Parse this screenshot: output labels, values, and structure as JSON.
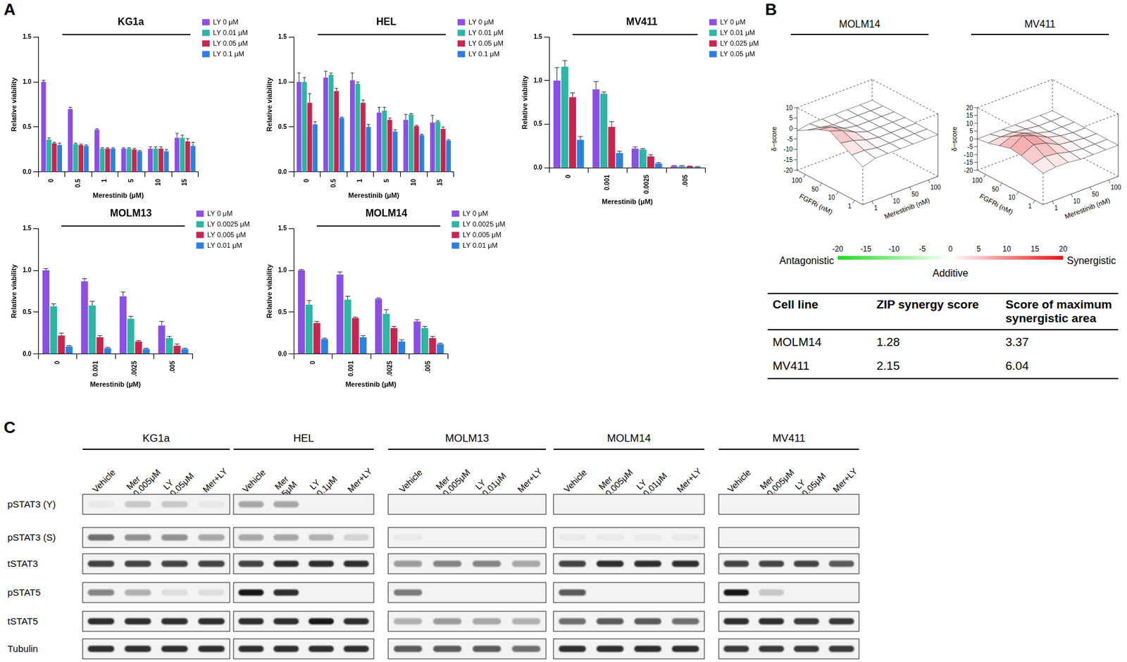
{
  "panel_labels": [
    "A",
    "B",
    "C"
  ],
  "chart_data": [
    {
      "type": "bar",
      "title": "KG1a",
      "x_label": "Merestinib (μM)",
      "y_label": "Relative viability",
      "categories": [
        "0",
        "0.5",
        "1",
        "5",
        "10",
        "15"
      ],
      "series": [
        {
          "name": "LY 0 μM",
          "color": "#8c4fe3",
          "values": [
            1.0,
            0.7,
            0.47,
            0.26,
            0.26,
            0.38
          ],
          "errors": [
            0.02,
            0.02,
            0.01,
            0.01,
            0.02,
            0.05
          ]
        },
        {
          "name": "LY 0.01 μM",
          "color": "#2bb6a5",
          "values": [
            0.36,
            0.31,
            0.26,
            0.26,
            0.26,
            0.38
          ],
          "errors": [
            0.02,
            0.01,
            0.01,
            0.01,
            0.02,
            0.03
          ]
        },
        {
          "name": "LY 0.05 μM",
          "color": "#c8254e",
          "values": [
            0.32,
            0.3,
            0.26,
            0.25,
            0.26,
            0.34
          ],
          "errors": [
            0.01,
            0.01,
            0.01,
            0.01,
            0.02,
            0.03
          ]
        },
        {
          "name": "LY 0.1 μM",
          "color": "#2d7fe0",
          "values": [
            0.3,
            0.29,
            0.26,
            0.23,
            0.23,
            0.29
          ],
          "errors": [
            0.02,
            0.01,
            0.01,
            0.01,
            0.02,
            0.04
          ]
        }
      ],
      "ylim": [
        0,
        1.5
      ],
      "yticks": [
        {
          "value": 0,
          "label": "0.0"
        },
        0.5,
        {
          "value": 1,
          "label": "1.0"
        },
        1.5
      ],
      "grid": false,
      "legend": "right"
    },
    {
      "type": "bar",
      "title": "HEL",
      "x_label": "Merestinib (μM)",
      "y_label": "Relative viability",
      "categories": [
        "0",
        "0.5",
        "1",
        "5",
        "10",
        "15"
      ],
      "series": [
        {
          "name": "LY 0 μM",
          "color": "#8c4fe3",
          "values": [
            1.0,
            1.05,
            1.02,
            0.66,
            0.58,
            0.55
          ],
          "errors": [
            0.1,
            0.07,
            0.08,
            0.06,
            0.06,
            0.08
          ]
        },
        {
          "name": "LY 0.01 μM",
          "color": "#2bb6a5",
          "values": [
            1.0,
            1.08,
            0.98,
            0.68,
            0.64,
            0.56
          ],
          "errors": [
            0.05,
            0.02,
            0.02,
            0.04,
            0.01,
            0.01
          ]
        },
        {
          "name": "LY 0.05 μM",
          "color": "#c8254e",
          "values": [
            0.77,
            0.9,
            0.77,
            0.58,
            0.51,
            0.48
          ],
          "errors": [
            0.1,
            0.03,
            0.03,
            0.02,
            0.01,
            0.02
          ]
        },
        {
          "name": "LY 0.1 μM",
          "color": "#2d7fe0",
          "values": [
            0.53,
            0.6,
            0.5,
            0.45,
            0.41,
            0.35
          ],
          "errors": [
            0.03,
            0.01,
            0.03,
            0.02,
            0.01,
            0.01
          ]
        }
      ],
      "ylim": [
        0,
        1.5
      ],
      "yticks": [
        {
          "value": 0,
          "label": "0.0"
        },
        0.5,
        {
          "value": 1,
          "label": "1.0"
        },
        1.5
      ],
      "grid": false,
      "legend": "right"
    },
    {
      "type": "bar",
      "title": "MV411",
      "x_label": "Merestinib (μM)",
      "y_label": "Relative viability",
      "categories": [
        "0",
        "0.001",
        "0.0025",
        ".005"
      ],
      "series": [
        {
          "name": "LY 0 μM",
          "color": "#8c4fe3",
          "values": [
            1.0,
            0.9,
            0.22,
            0.02
          ],
          "errors": [
            0.15,
            0.09,
            0.02,
            0.005
          ]
        },
        {
          "name": "LY 0.01 μM",
          "color": "#2bb6a5",
          "values": [
            1.16,
            0.85,
            0.21,
            0.02
          ],
          "errors": [
            0.07,
            0.02,
            0.01,
            0.005
          ]
        },
        {
          "name": "LY 0.025 μM",
          "color": "#c8254e",
          "values": [
            0.81,
            0.47,
            0.13,
            0.015
          ],
          "errors": [
            0.05,
            0.06,
            0.02,
            0.005
          ]
        },
        {
          "name": "LY 0.05 μM",
          "color": "#2d7fe0",
          "values": [
            0.32,
            0.17,
            0.05,
            0.01
          ],
          "errors": [
            0.04,
            0.02,
            0.01,
            0.005
          ]
        }
      ],
      "ylim": [
        0,
        1.5
      ],
      "yticks": [
        {
          "value": 0,
          "label": "0.0"
        },
        0.5,
        {
          "value": 1,
          "label": "1.0"
        },
        1.5
      ],
      "grid": false,
      "legend": "right"
    },
    {
      "type": "bar",
      "title": "MOLM13",
      "x_label": "Merestinib (μM)",
      "y_label": "Relative viability",
      "categories": [
        "0",
        "0.001",
        ".0025",
        ".005"
      ],
      "series": [
        {
          "name": "LY 0 μM",
          "color": "#8c4fe3",
          "values": [
            1.0,
            0.87,
            0.69,
            0.34
          ],
          "errors": [
            0.02,
            0.03,
            0.05,
            0.05
          ]
        },
        {
          "name": "LY 0.0025 μM",
          "color": "#2bb6a5",
          "values": [
            0.57,
            0.58,
            0.42,
            0.19
          ],
          "errors": [
            0.03,
            0.05,
            0.03,
            0.02
          ]
        },
        {
          "name": "LY 0.005 μM",
          "color": "#c8254e",
          "values": [
            0.22,
            0.2,
            0.15,
            0.1
          ],
          "errors": [
            0.03,
            0.02,
            0.01,
            0.02
          ]
        },
        {
          "name": "LY 0.01 μM",
          "color": "#2d7fe0",
          "values": [
            0.09,
            0.07,
            0.06,
            0.06
          ],
          "errors": [
            0.01,
            0.01,
            0.01,
            0.01
          ]
        }
      ],
      "ylim": [
        0,
        1.5
      ],
      "yticks": [
        {
          "value": 0,
          "label": "0.0"
        },
        0.5,
        {
          "value": 1,
          "label": "1.0"
        },
        1.5
      ],
      "grid": false,
      "legend": "right"
    },
    {
      "type": "bar",
      "title": "MOLM14",
      "x_label": "Merestinib (μM)",
      "y_label": "Relative viability",
      "categories": [
        "0",
        "0.001",
        ".0025",
        ".005"
      ],
      "series": [
        {
          "name": "LY 0 μM",
          "color": "#8c4fe3",
          "values": [
            1.0,
            0.95,
            0.66,
            0.39
          ],
          "errors": [
            0.01,
            0.03,
            0.01,
            0.02
          ]
        },
        {
          "name": "LY 0.0025 μM",
          "color": "#2bb6a5",
          "values": [
            0.59,
            0.65,
            0.48,
            0.31
          ],
          "errors": [
            0.05,
            0.04,
            0.05,
            0.02
          ]
        },
        {
          "name": "LY 0.005 μM",
          "color": "#c8254e",
          "values": [
            0.37,
            0.43,
            0.31,
            0.19
          ],
          "errors": [
            0.02,
            0.01,
            0.02,
            0.02
          ]
        },
        {
          "name": "LY 0.01 μM",
          "color": "#2d7fe0",
          "values": [
            0.18,
            0.2,
            0.15,
            0.12
          ],
          "errors": [
            0.01,
            0.02,
            0.02,
            0.01
          ]
        }
      ],
      "ylim": [
        0,
        1.5
      ],
      "yticks": [
        {
          "value": 0,
          "label": "0.0"
        },
        0.5,
        {
          "value": 1,
          "label": "1.0"
        },
        1.5
      ],
      "grid": false,
      "legend": "right"
    }
  ],
  "synergy": {
    "surfaces": [
      {
        "title": "MOLM14",
        "x_label": "Merestinib (nM)",
        "y_label": "FGFRi (nM)",
        "z_label": "δ−score",
        "xticks": [
          1,
          10,
          50,
          100
        ],
        "yticks": [
          1,
          10,
          50,
          100
        ],
        "zlim": [
          -20,
          10
        ],
        "zticks": [
          -20,
          -15,
          -10,
          -5,
          0,
          5,
          10
        ],
        "delta": [
          [
            -2,
            0,
            0,
            0,
            0,
            0,
            0
          ],
          [
            1,
            1,
            0,
            0,
            0,
            0,
            0
          ],
          [
            4,
            3,
            1,
            0,
            0,
            0,
            0
          ],
          [
            7,
            5,
            2,
            0,
            0,
            0,
            0
          ],
          [
            5,
            4,
            1,
            0,
            0,
            0,
            0
          ],
          [
            2,
            1,
            0,
            0,
            0,
            0,
            0
          ],
          [
            -1,
            0,
            0,
            0,
            0,
            0,
            0
          ]
        ]
      },
      {
        "title": "MV411",
        "x_label": "Merestinib (nM)",
        "y_label": "FGFRi (nM)",
        "z_label": "δ−score",
        "xticks": [
          1,
          10,
          50,
          100
        ],
        "yticks": [
          1,
          10,
          50,
          100
        ],
        "zlim": [
          -20,
          20
        ],
        "zticks": [
          -20,
          -15,
          -10,
          -5,
          0,
          5,
          10,
          15,
          20
        ],
        "delta": [
          [
            0,
            1,
            1,
            0,
            0,
            0,
            0
          ],
          [
            2,
            4,
            3,
            1,
            0,
            0,
            0
          ],
          [
            4,
            8,
            6,
            2,
            1,
            0,
            0
          ],
          [
            5,
            10,
            7,
            3,
            1,
            0,
            0
          ],
          [
            3,
            6,
            5,
            2,
            0,
            0,
            0
          ],
          [
            1,
            2,
            2,
            1,
            0,
            0,
            0
          ],
          [
            0,
            0,
            0,
            0,
            0,
            0,
            0
          ]
        ]
      }
    ],
    "colorbar": {
      "range": [
        -20,
        20
      ],
      "ticks": [
        -20,
        -15,
        -10,
        -5,
        0,
        5,
        10,
        15,
        20
      ],
      "left_label": "Antagonistic",
      "center_label": "Additive",
      "right_label": "Synergistic"
    },
    "table": {
      "header": [
        "Cell line",
        "ZIP synergy score",
        "Score of maximum synergistic area"
      ],
      "rows": [
        [
          "MOLM14",
          1.28,
          3.37
        ],
        [
          "MV411",
          2.15,
          6.04
        ]
      ]
    }
  },
  "blots": {
    "rows": [
      "pSTAT3 (Y)",
      "pSTAT3 (S)",
      "tSTAT3",
      "pSTAT5",
      "tSTAT5",
      "Tubulin"
    ],
    "groups": [
      {
        "title": "KG1a",
        "lanes": [
          [
            "Vehicle"
          ],
          [
            "Mer",
            "0.005μM"
          ],
          [
            "LY",
            "0.05μM"
          ],
          [
            "Mer+LY"
          ]
        ],
        "bands": [
          [
            0.05,
            0.2,
            0.2,
            0.05
          ],
          [
            0.6,
            0.45,
            0.45,
            0.35
          ],
          [
            0.8,
            0.8,
            0.8,
            0.8
          ],
          [
            0.5,
            0.3,
            0.1,
            0.1
          ],
          [
            0.9,
            0.9,
            0.9,
            0.9
          ],
          [
            0.9,
            0.9,
            0.9,
            0.9
          ]
        ]
      },
      {
        "title": "HEL",
        "lanes": [
          [
            "Vehicle"
          ],
          [
            "Mer",
            "5μM"
          ],
          [
            "LY",
            "0.1μM"
          ],
          [
            "Mer+LY"
          ]
        ],
        "bands": [
          [
            0.35,
            0.35,
            0,
            0
          ],
          [
            0.35,
            0.35,
            0.3,
            0.15
          ],
          [
            0.8,
            0.9,
            0.9,
            0.9
          ],
          [
            1,
            0.9,
            0,
            0
          ],
          [
            0.9,
            0.9,
            1,
            0.9
          ],
          [
            0.9,
            0.9,
            0.9,
            0.9
          ]
        ]
      },
      {
        "title": "MOLM13",
        "lanes": [
          [
            "Vehicle"
          ],
          [
            "Mer",
            "0.005μM"
          ],
          [
            "LY",
            "0.01μM"
          ],
          [
            "Mer+LY"
          ]
        ],
        "bands": [
          [
            0,
            0,
            0,
            0
          ],
          [
            0.05,
            0,
            0,
            0
          ],
          [
            0.4,
            0.5,
            0.5,
            0.35
          ],
          [
            0.55,
            0,
            0,
            0
          ],
          [
            0.3,
            0.4,
            0.35,
            0.3
          ],
          [
            0.7,
            0.7,
            0.7,
            0.6
          ]
        ]
      },
      {
        "title": "MOLM14",
        "lanes": [
          [
            "Vehicle"
          ],
          [
            "Mer",
            "0.005μM"
          ],
          [
            "LY",
            "0.01μM"
          ],
          [
            "Mer+LY"
          ]
        ],
        "bands": [
          [
            0,
            0,
            0,
            0
          ],
          [
            0.05,
            0.05,
            0.05,
            0.05
          ],
          [
            0.8,
            0.9,
            0.9,
            0.9
          ],
          [
            0.7,
            0,
            0,
            0
          ],
          [
            0.6,
            0.7,
            0.7,
            0.6
          ],
          [
            0.9,
            0.9,
            0.9,
            0.9
          ]
        ]
      },
      {
        "title": "MV411",
        "lanes": [
          [
            "Vehicle"
          ],
          [
            "Mer",
            "0.005μM"
          ],
          [
            "LY",
            "0.05μM"
          ],
          [
            "Mer+LY"
          ]
        ],
        "bands": [
          [
            0,
            0,
            0,
            0
          ],
          [
            0,
            0,
            0,
            0
          ],
          [
            0.8,
            0.8,
            0.8,
            0.7
          ],
          [
            1,
            0.2,
            0,
            0
          ],
          [
            0.9,
            0.9,
            0.85,
            0.85
          ],
          [
            0.85,
            0.85,
            0.85,
            0.85
          ]
        ]
      }
    ]
  }
}
